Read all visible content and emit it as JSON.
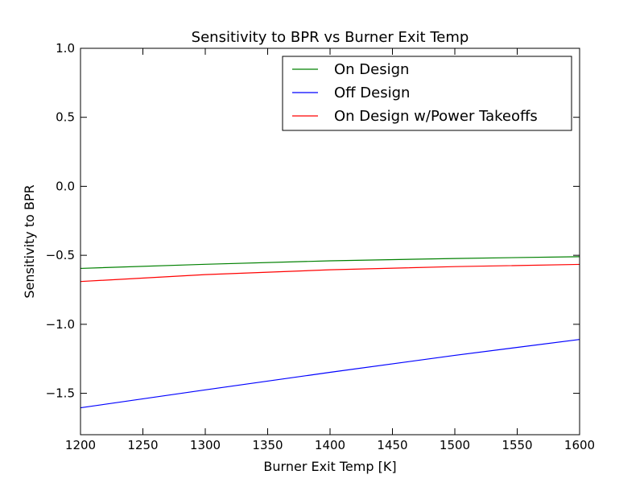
{
  "chart_data": {
    "type": "line",
    "title": "Sensitivity to BPR vs Burner Exit Temp",
    "xlabel": "Burner Exit Temp [K]",
    "ylabel": "Sensitivity to BPR",
    "xlim": [
      1200,
      1600
    ],
    "ylim": [
      -1.8,
      1.0
    ],
    "xticks": [
      1200,
      1250,
      1300,
      1350,
      1400,
      1450,
      1500,
      1550,
      1600
    ],
    "yticks": [
      1.0,
      0.5,
      0.0,
      -0.5,
      -1.0,
      -1.5
    ],
    "xtick_labels": [
      "1200",
      "1250",
      "1300",
      "1350",
      "1400",
      "1450",
      "1500",
      "1550",
      "1600"
    ],
    "ytick_labels": [
      "1.0",
      "0.5",
      "0.0",
      "−0.5",
      "−1.0",
      "−1.5"
    ],
    "legend_position": "top-right",
    "grid": false,
    "series": [
      {
        "name": "On Design",
        "color": "#008000",
        "x": [
          1200,
          1300,
          1400,
          1500,
          1600
        ],
        "y": [
          -0.595,
          -0.565,
          -0.54,
          -0.523,
          -0.51
        ]
      },
      {
        "name": "Off Design",
        "color": "#0000ff",
        "x": [
          1200,
          1300,
          1400,
          1500,
          1600
        ],
        "y": [
          -1.605,
          -1.475,
          -1.348,
          -1.225,
          -1.11
        ]
      },
      {
        "name": "On Design w/Power Takeoffs",
        "color": "#ff0000",
        "x": [
          1200,
          1300,
          1400,
          1500,
          1600
        ],
        "y": [
          -0.69,
          -0.64,
          -0.605,
          -0.582,
          -0.566
        ]
      }
    ]
  }
}
